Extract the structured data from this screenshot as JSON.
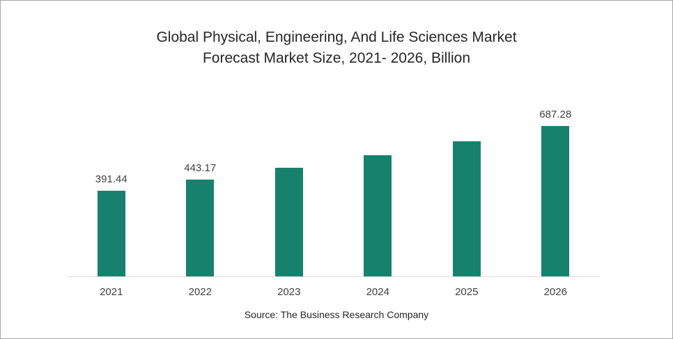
{
  "title": {
    "line1": "Global Physical, Engineering, And Life Sciences Market",
    "line2": "Forecast Market Size, 2021- 2026, Billion"
  },
  "source": "Source: The Business Research Company",
  "colors": {
    "bar": "#17816e",
    "axis_line": "#d9d9d9",
    "text": "#404040",
    "frame_border": "#a6a6a6",
    "background": "#ffffff"
  },
  "chart_data": {
    "type": "bar",
    "title": "Global Physical, Engineering, And Life Sciences Market Forecast Market Size, 2021- 2026, Billion",
    "categories": [
      "2021",
      "2022",
      "2023",
      "2024",
      "2025",
      "2026"
    ],
    "values": [
      391.44,
      443.17,
      494.6,
      551.9,
      616.0,
      687.28
    ],
    "data_labels": [
      "391.44",
      "443.17",
      "",
      "",
      "",
      "687.28"
    ],
    "xlabel": "",
    "ylabel": "",
    "ylim": [
      0,
      890
    ],
    "grid": false,
    "legend": false,
    "bar_color": "#17816e",
    "source": "Source: The Business Research Company"
  }
}
